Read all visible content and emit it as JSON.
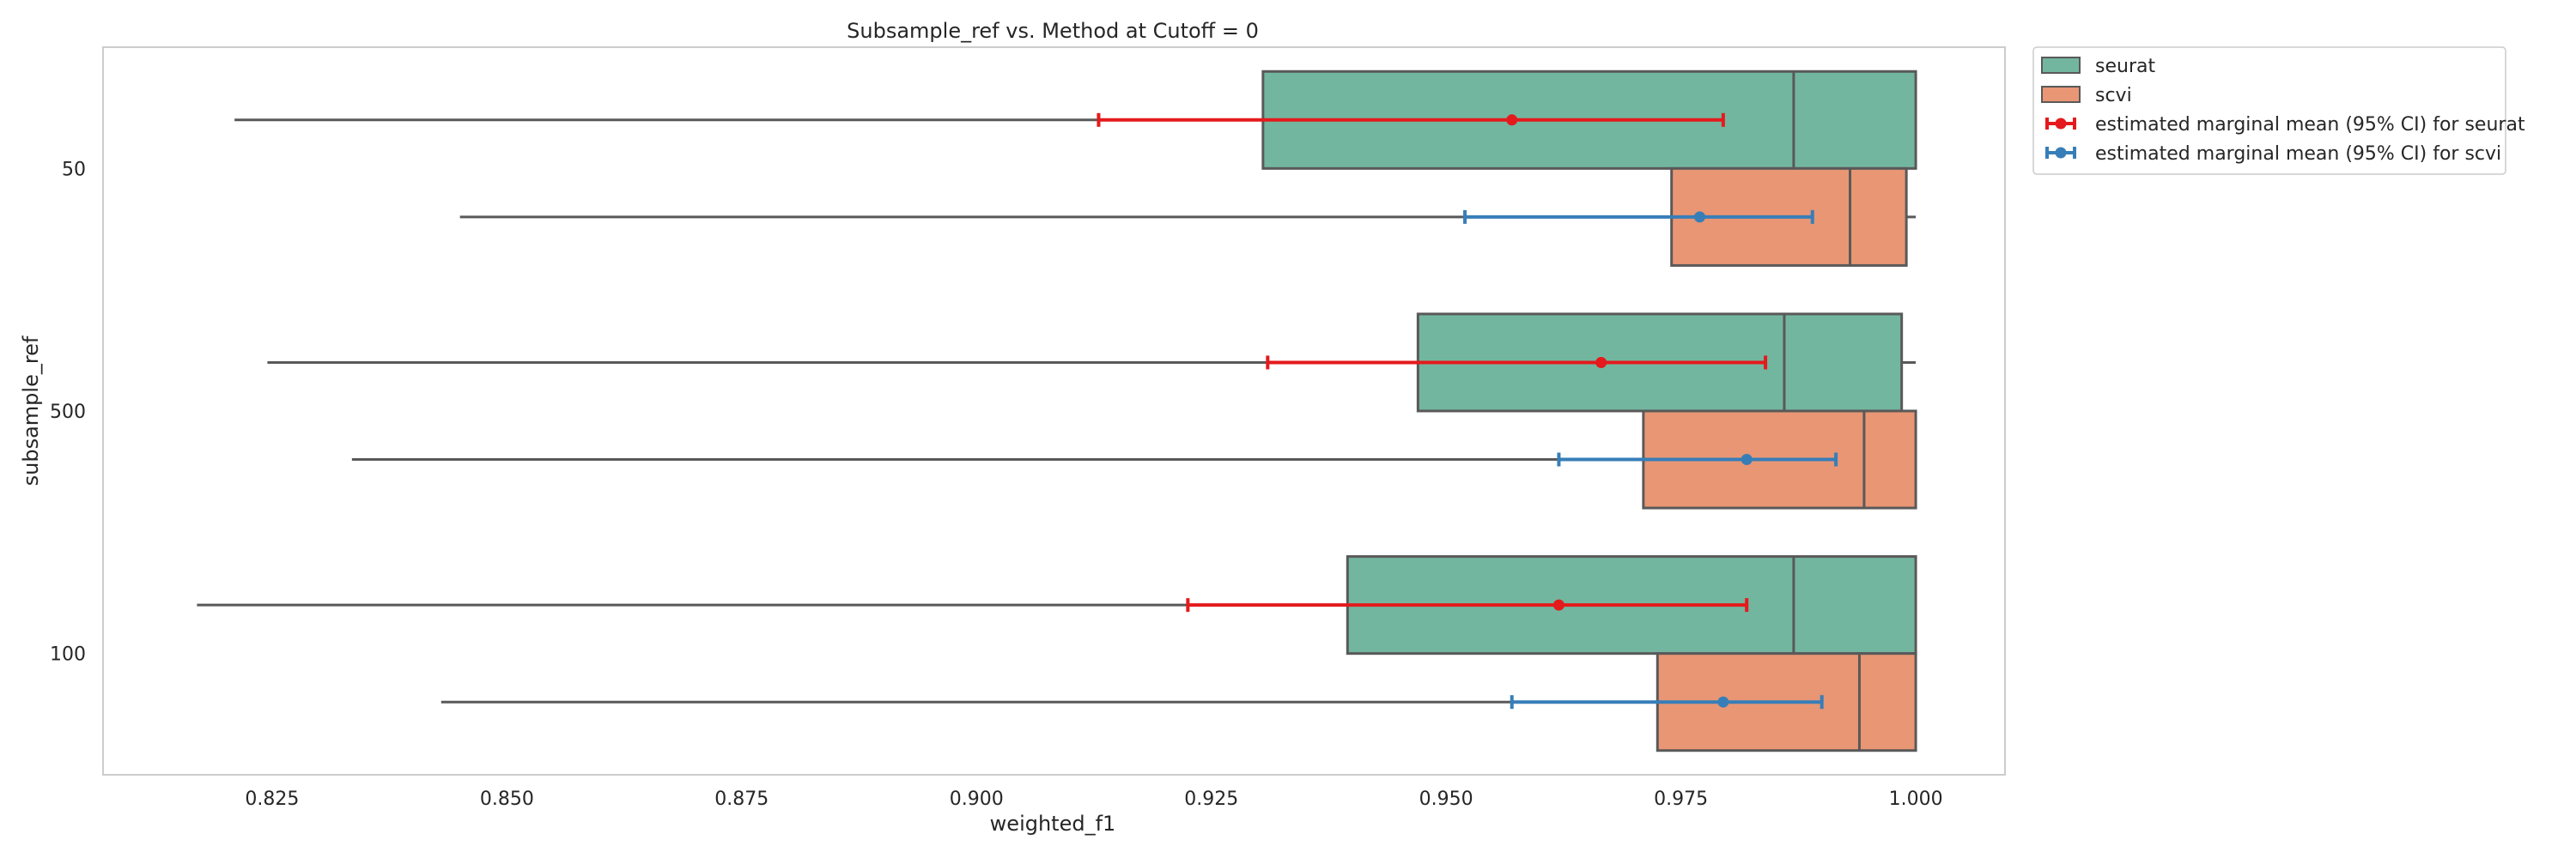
{
  "chart_data": {
    "type": "box",
    "orientation": "horizontal",
    "title": "Subsample_ref vs. Method at Cutoff = 0",
    "xlabel": "weighted_f1",
    "ylabel": "subsample_ref",
    "xlim": [
      0.807,
      1.0095
    ],
    "x_ticks": [
      "0.825",
      "0.850",
      "0.875",
      "0.900",
      "0.925",
      "0.950",
      "0.975",
      "1.000"
    ],
    "categories": [
      "50",
      "500",
      "100"
    ],
    "grid": false,
    "legend_position": "outside-top-right",
    "series": [
      {
        "name": "seurat",
        "color": "#73b6a0",
        "boxes": [
          {
            "whisker_low": 0.821,
            "q1": 0.9305,
            "median": 0.987,
            "q3": 1.0,
            "whisker_high": 1.0
          },
          {
            "whisker_low": 0.8245,
            "q1": 0.947,
            "median": 0.986,
            "q3": 0.9985,
            "whisker_high": 1.0
          },
          {
            "whisker_low": 0.817,
            "q1": 0.9395,
            "median": 0.987,
            "q3": 1.0,
            "whisker_high": 1.0
          }
        ]
      },
      {
        "name": "scvi",
        "color": "#e99674",
        "boxes": [
          {
            "whisker_low": 0.845,
            "q1": 0.974,
            "median": 0.993,
            "q3": 0.999,
            "whisker_high": 1.0
          },
          {
            "whisker_low": 0.8335,
            "q1": 0.971,
            "median": 0.9945,
            "q3": 1.0,
            "whisker_high": 1.0
          },
          {
            "whisker_low": 0.843,
            "q1": 0.9725,
            "median": 0.994,
            "q3": 1.0,
            "whisker_high": 1.0
          }
        ]
      }
    ],
    "marginal_means": [
      {
        "name": "estimated marginal mean (95% CI) for seurat",
        "color": "#e41a1c",
        "points": [
          {
            "mean": 0.957,
            "ci_low": 0.913,
            "ci_high": 0.9795
          },
          {
            "mean": 0.9665,
            "ci_low": 0.931,
            "ci_high": 0.984
          },
          {
            "mean": 0.962,
            "ci_low": 0.9225,
            "ci_high": 0.982
          }
        ]
      },
      {
        "name": "estimated marginal mean (95% CI) for scvi",
        "color": "#377eb8",
        "points": [
          {
            "mean": 0.977,
            "ci_low": 0.952,
            "ci_high": 0.989
          },
          {
            "mean": 0.982,
            "ci_low": 0.962,
            "ci_high": 0.9915
          },
          {
            "mean": 0.9795,
            "ci_low": 0.957,
            "ci_high": 0.99
          }
        ]
      }
    ]
  }
}
